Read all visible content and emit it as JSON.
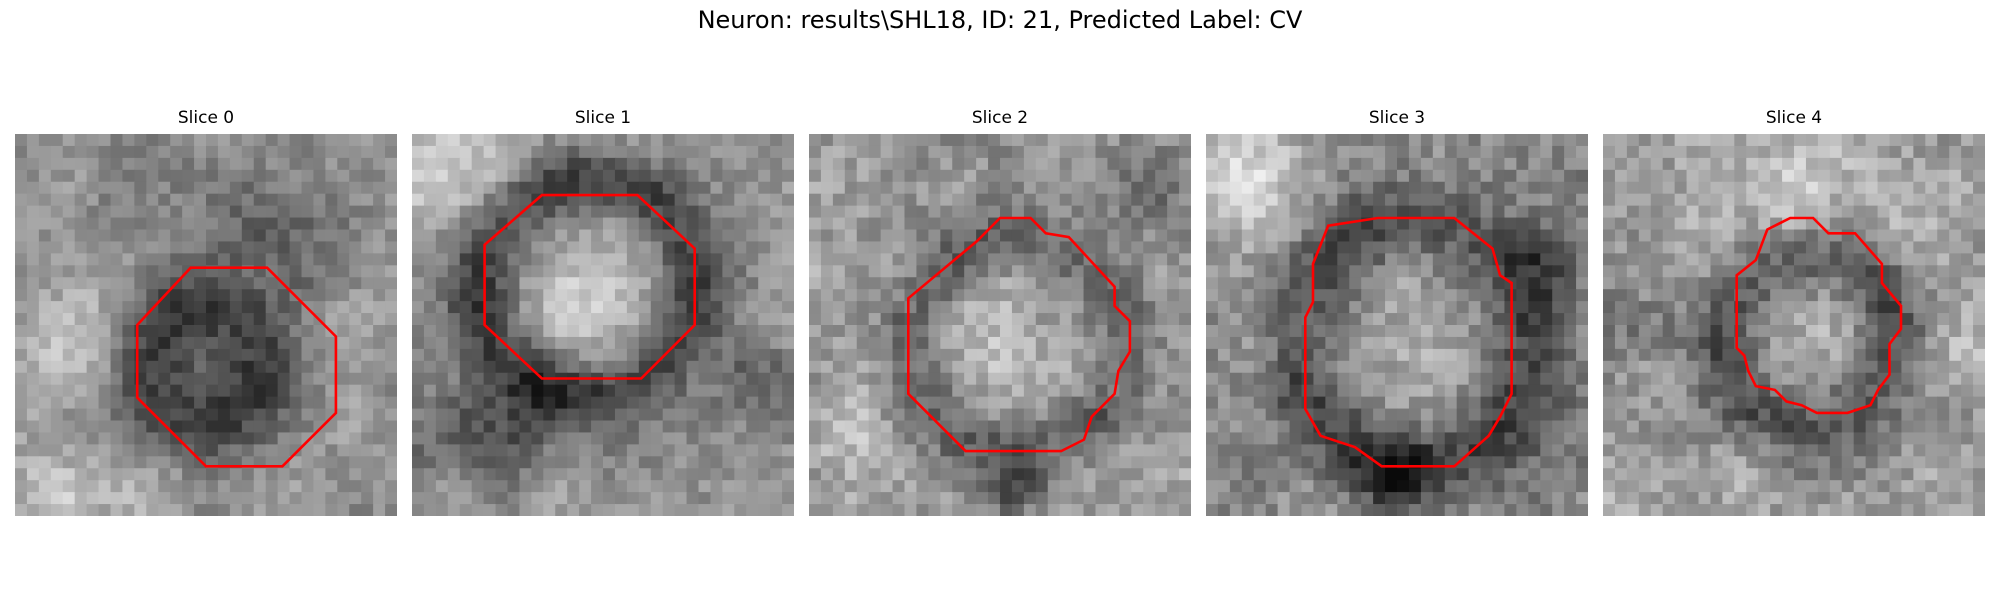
{
  "title": "Neuron: results\\SHL18, ID: 21, Predicted Label: CV",
  "panels": [
    {
      "title": "Slice 0",
      "texture": "dark ring on mottled grey background",
      "contour_color": "#ff0000"
    },
    {
      "title": "Slice 1",
      "texture": "bright center with dark ring",
      "contour_color": "#ff0000"
    },
    {
      "title": "Slice 2",
      "texture": "bright mottled center with darker rim",
      "contour_color": "#ff0000"
    },
    {
      "title": "Slice 3",
      "texture": "mottled grey center with dark blobs",
      "contour_color": "#ff0000"
    },
    {
      "title": "Slice 4",
      "texture": "dark ring near center, noisy background",
      "contour_color": "#ff0000"
    }
  ],
  "colors": {
    "contour": "#ff0000",
    "background": "#ffffff"
  }
}
